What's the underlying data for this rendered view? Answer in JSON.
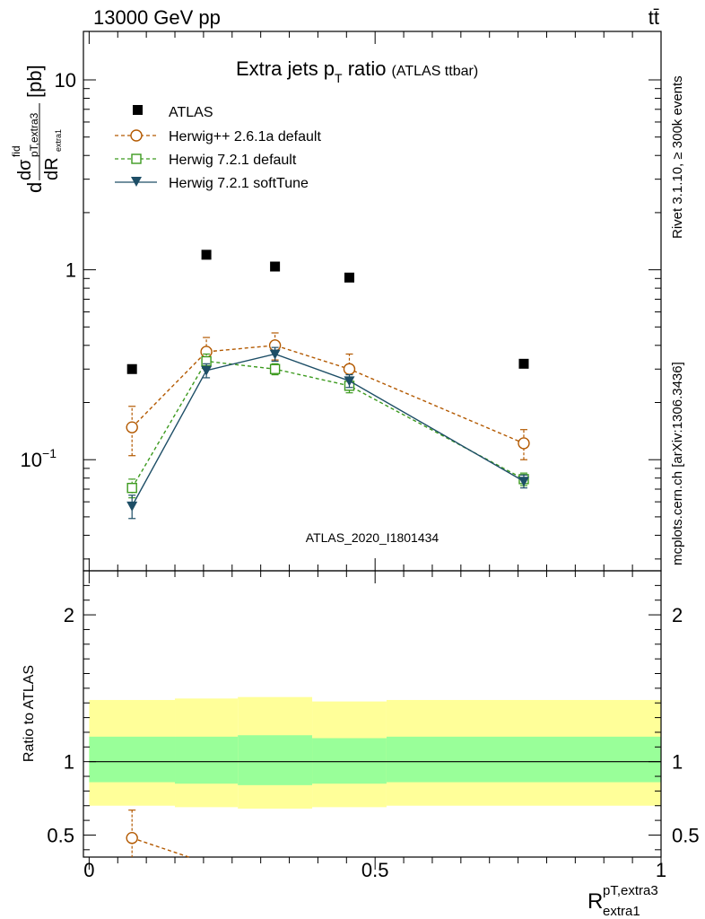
{
  "header": {
    "energy_label": "13000 GeV pp",
    "process_label": "tt̄"
  },
  "side_labels": {
    "rivet": "Rivet 3.1.10, ≥ 300k events",
    "mcplots": "mcplots.cern.ch [arXiv:1306.3436]"
  },
  "watermark": "ATLAS_2020_I1801434",
  "colors": {
    "data": "#000000",
    "herwigpp": "#b35900",
    "herwig721": "#3c9a1e",
    "softtune": "#1d4e66",
    "band_outer": "#ffff99",
    "band_inner": "#99ff99"
  },
  "chart_data": [
    {
      "type": "scatter",
      "title": "Extra jets p_T ratio (ATLAS ttbar)",
      "title_main": "Extra jets p",
      "title_sub": "T",
      "title_rest": " ratio",
      "title_note": "(ATLAS ttbar)",
      "ylabel": "dσ^fid / dR^pT,extra3_extra1 [pb]",
      "ylabel_parts": {
        "d1": "d",
        "sigma": "dσ",
        "sup": "fid",
        "sub": "pT,extra3",
        "sub2": "extra1",
        "dR": "dR",
        "unit": "[pb]"
      },
      "yscale": "log",
      "ylim": [
        0.026,
        18
      ],
      "xlim": [
        -0.01,
        1.0
      ],
      "y_ticks": [
        {
          "value": 0.1,
          "label": "10",
          "sup": "−1"
        },
        {
          "value": 1,
          "label": "1"
        },
        {
          "value": 10,
          "label": "10"
        }
      ],
      "legend_position": "top-left",
      "series": [
        {
          "name": "ATLAS",
          "marker": "square-filled",
          "x": [
            0.075,
            0.205,
            0.325,
            0.455,
            0.76
          ],
          "y": [
            0.3,
            1.2,
            1.04,
            0.91,
            0.32
          ]
        },
        {
          "name": "Herwig++ 2.6.1a default",
          "marker": "circle-open",
          "dash": true,
          "x": [
            0.075,
            0.205,
            0.325,
            0.455,
            0.76
          ],
          "y": [
            0.148,
            0.37,
            0.4,
            0.3,
            0.122
          ],
          "yerr": [
            0.043,
            0.07,
            0.065,
            0.06,
            0.022
          ]
        },
        {
          "name": "Herwig 7.2.1 default",
          "marker": "square-open",
          "dash": true,
          "x": [
            0.075,
            0.205,
            0.325,
            0.455,
            0.76
          ],
          "y": [
            0.071,
            0.33,
            0.3,
            0.245,
            0.079
          ],
          "yerr": [
            0.008,
            0.03,
            0.02,
            0.02,
            0.006
          ]
        },
        {
          "name": "Herwig 7.2.1 softTune",
          "marker": "triangle-down-filled",
          "dash": false,
          "x": [
            0.075,
            0.205,
            0.325,
            0.455,
            0.76
          ],
          "y": [
            0.057,
            0.295,
            0.36,
            0.26,
            0.077
          ],
          "yerr": [
            0.008,
            0.025,
            0.03,
            0.02,
            0.006
          ]
        }
      ]
    },
    {
      "type": "line",
      "ylabel": "Ratio to ATLAS",
      "xlabel": "R^pT,extra3_extra1",
      "xlabel_parts": {
        "main": "R",
        "sup": "pT,extra3",
        "sub": "extra1"
      },
      "xlim": [
        -0.01,
        1.0
      ],
      "ylim": [
        0.35,
        2.3
      ],
      "x_ticks": [
        {
          "value": 0,
          "label": "0"
        },
        {
          "value": 0.5,
          "label": "0.5"
        },
        {
          "value": 1,
          "label": "1"
        }
      ],
      "y_ticks": [
        {
          "value": 0.5,
          "label": "0.5"
        },
        {
          "value": 1,
          "label": "1"
        },
        {
          "value": 2,
          "label": "2"
        }
      ],
      "reference_line": 1,
      "bands": {
        "edges": [
          0,
          0.15,
          0.26,
          0.39,
          0.52,
          1.0
        ],
        "outer_low": [
          0.7,
          0.69,
          0.68,
          0.69,
          0.7
        ],
        "outer_high": [
          1.42,
          1.43,
          1.44,
          1.41,
          1.42
        ],
        "inner_low": [
          0.86,
          0.85,
          0.84,
          0.85,
          0.86
        ],
        "inner_high": [
          1.17,
          1.17,
          1.18,
          1.16,
          1.17
        ]
      },
      "series": [
        {
          "name": "Herwig++ 2.6.1a default",
          "x": [
            0.075,
            0.205
          ],
          "y": [
            0.48,
            0.31
          ],
          "yerr": [
            0.19,
            0
          ]
        }
      ]
    }
  ]
}
